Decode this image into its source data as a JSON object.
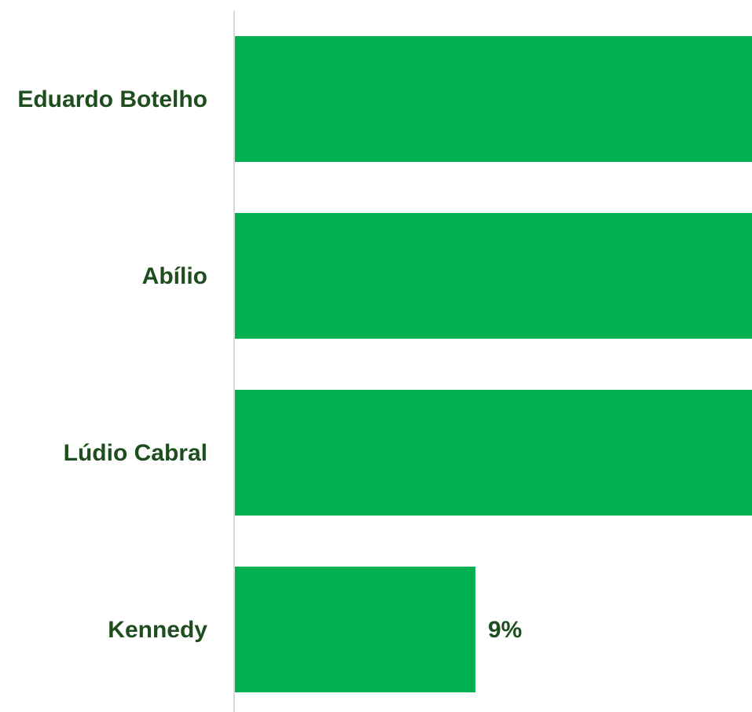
{
  "chart_data": {
    "type": "bar",
    "orientation": "horizontal",
    "categories": [
      "Eduardo Botelho",
      "Abílio",
      "Lúdio Cabral",
      "Kennedy"
    ],
    "values": [
      null,
      null,
      null,
      9
    ],
    "value_labels": [
      "",
      "",
      "",
      "9%"
    ],
    "notes_visible_range": "First three bars extend beyond the right edge of the visible area; their values are not shown.",
    "xlim": [
      0,
      19
    ],
    "unit": "%",
    "grid": false,
    "legend": "none",
    "colors": {
      "bar": "#00b050",
      "label": "#1e4d1e",
      "axis": "#d9d9d9"
    }
  }
}
